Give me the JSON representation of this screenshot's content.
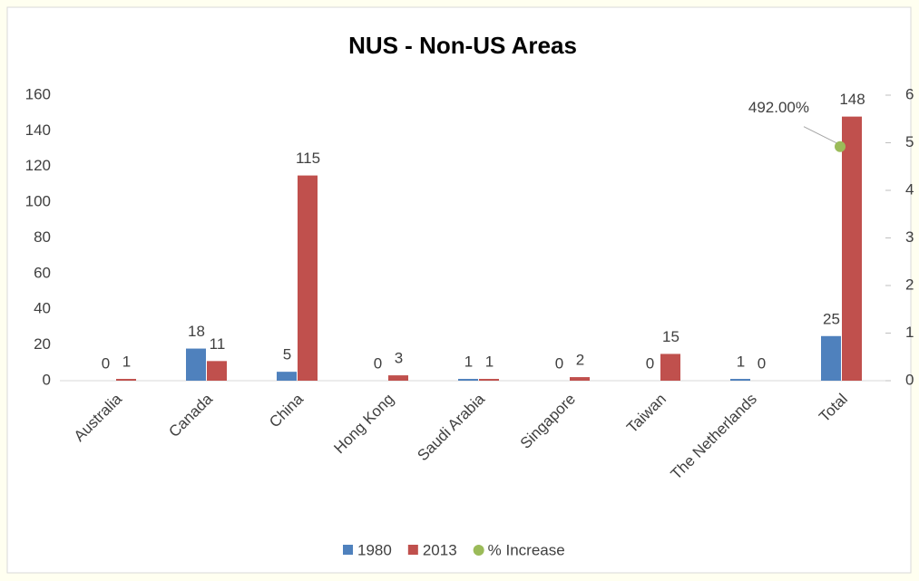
{
  "chart_data": {
    "type": "bar",
    "title": "NUS - Non-US Areas",
    "categories": [
      "Australia",
      "Canada",
      "China",
      "Hong Kong",
      "Saudi Arabia",
      "Singapore",
      "Taiwan",
      "The Netherlands",
      "Total"
    ],
    "series": [
      {
        "name": "1980",
        "color": "#4f81bd",
        "values": [
          0,
          18,
          5,
          0,
          1,
          0,
          0,
          1,
          25
        ]
      },
      {
        "name": "2013",
        "color": "#c0504d",
        "values": [
          1,
          11,
          115,
          3,
          1,
          2,
          15,
          0,
          148
        ]
      },
      {
        "name": "% Increase",
        "color": "#9bbb59",
        "type": "scatter",
        "axis": "y2",
        "values": [
          null,
          null,
          null,
          null,
          null,
          null,
          null,
          null,
          4.92
        ],
        "value_labels": [
          null,
          null,
          null,
          null,
          null,
          null,
          null,
          null,
          "492.00%"
        ]
      }
    ],
    "ylim": [
      0,
      160
    ],
    "yticks": [
      0,
      20,
      40,
      60,
      80,
      100,
      120,
      140,
      160
    ],
    "y2lim": [
      0,
      6
    ],
    "y2ticks": [
      0,
      1,
      2,
      3,
      4,
      5,
      6
    ],
    "grid": false,
    "legend": "bottom"
  }
}
